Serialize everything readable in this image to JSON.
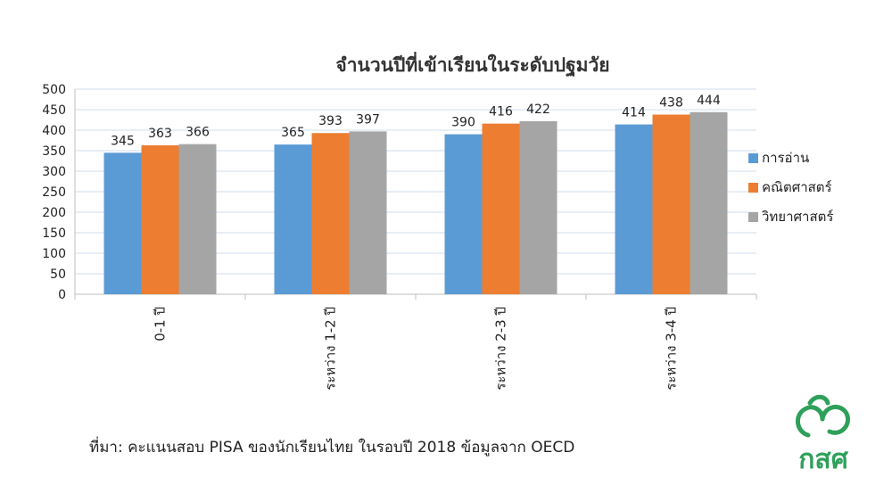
{
  "chart_data": {
    "type": "bar",
    "title": "จำนวนปีที่เข้าเรียนในระดับปฐมวัย",
    "categories": [
      "0-1 ปี",
      "ระหว่าง 1-2 ปี",
      "ระหว่าง 2-3 ปี",
      "ระหว่าง 3-4 ปี"
    ],
    "series": [
      {
        "name": "การอ่าน",
        "values": [
          345,
          365,
          390,
          414
        ],
        "color": "#5b9bd5"
      },
      {
        "name": "คณิตศาสตร์",
        "values": [
          363,
          393,
          416,
          438
        ],
        "color": "#ed7d31"
      },
      {
        "name": "วิทยาศาสตร์",
        "values": [
          366,
          397,
          422,
          444
        ],
        "color": "#a5a5a5"
      }
    ],
    "ylim": [
      0,
      500
    ],
    "yticks": [
      0,
      50,
      100,
      150,
      200,
      250,
      300,
      350,
      400,
      450,
      500
    ],
    "grid": true,
    "legend_position": "right"
  },
  "source_note": "ที่มา: คะแนนสอบ PISA ของนักเรียนไทย ในรอบปี 2018 ข้อมูลจาก OECD",
  "logo": {
    "text": "กสศ",
    "color": "#2ea05a"
  }
}
